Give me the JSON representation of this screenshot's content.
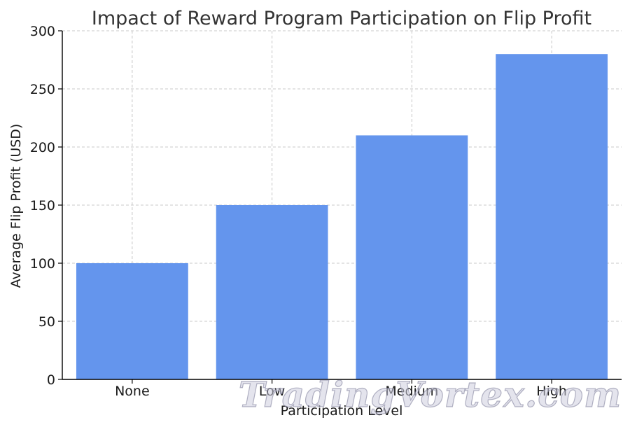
{
  "colors": {
    "bar": "#6495ED",
    "grid": "#c8c8c8",
    "axis": "#000000"
  },
  "watermark": "TradingVortex.com",
  "chart_data": {
    "type": "bar",
    "title": "Impact of Reward Program Participation on Flip Profit",
    "xlabel": "Participation Level",
    "ylabel": "Average Flip Profit (USD)",
    "categories": [
      "None",
      "Low",
      "Medium",
      "High"
    ],
    "values": [
      100,
      150,
      210,
      280
    ],
    "ylim": [
      0,
      300
    ],
    "yticks": [
      0,
      50,
      100,
      150,
      200,
      250,
      300
    ],
    "grid": true,
    "legend": "none"
  }
}
